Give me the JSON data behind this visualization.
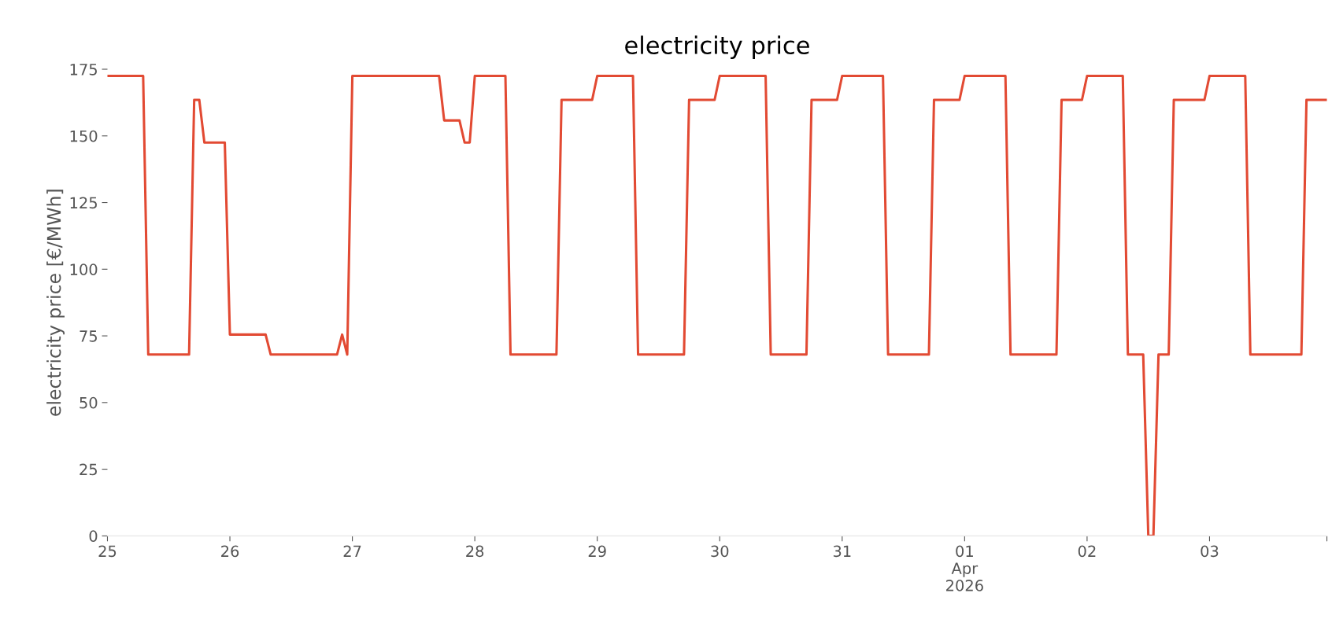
{
  "chart_data": {
    "type": "line",
    "title": "electricity price",
    "ylabel": "electricity price [€/MWh]",
    "x": [
      "2026-03-25T00:00",
      "2026-03-25T07:00",
      "2026-03-25T08:00",
      "2026-03-25T16:00",
      "2026-03-25T17:00",
      "2026-03-25T18:00",
      "2026-03-25T19:00",
      "2026-03-25T23:00",
      "2026-03-26T00:00",
      "2026-03-26T07:00",
      "2026-03-26T08:00",
      "2026-03-26T21:00",
      "2026-03-26T22:00",
      "2026-03-26T23:00",
      "2026-03-27T00:00",
      "2026-03-27T17:00",
      "2026-03-27T18:00",
      "2026-03-27T21:00",
      "2026-03-27T22:00",
      "2026-03-27T23:00",
      "2026-03-28T00:00",
      "2026-03-28T06:00",
      "2026-03-28T07:00",
      "2026-03-28T16:00",
      "2026-03-28T17:00",
      "2026-03-28T23:00",
      "2026-03-29T00:00",
      "2026-03-29T07:00",
      "2026-03-29T08:00",
      "2026-03-29T17:00",
      "2026-03-29T18:00",
      "2026-03-29T23:00",
      "2026-03-30T00:00",
      "2026-03-30T09:00",
      "2026-03-30T10:00",
      "2026-03-30T17:00",
      "2026-03-30T18:00",
      "2026-03-30T23:00",
      "2026-03-31T00:00",
      "2026-03-31T08:00",
      "2026-03-31T09:00",
      "2026-03-31T17:00",
      "2026-03-31T18:00",
      "2026-03-31T23:00",
      "2026-04-01T00:00",
      "2026-04-01T08:00",
      "2026-04-01T09:00",
      "2026-04-01T18:00",
      "2026-04-01T19:00",
      "2026-04-01T23:00",
      "2026-04-02T00:00",
      "2026-04-02T07:00",
      "2026-04-02T08:00",
      "2026-04-02T11:00",
      "2026-04-02T12:00",
      "2026-04-02T13:00",
      "2026-04-02T14:00",
      "2026-04-02T16:00",
      "2026-04-02T17:00",
      "2026-04-02T23:00",
      "2026-04-03T00:00",
      "2026-04-03T07:00",
      "2026-04-03T08:00",
      "2026-04-03T18:00",
      "2026-04-03T19:00",
      "2026-04-03T23:00"
    ],
    "series": [
      {
        "color": "#e24a33",
        "values": [
          172.5,
          172.5,
          68,
          68,
          163.5,
          163.5,
          147.5,
          147.5,
          75.5,
          75.5,
          68,
          68,
          75.5,
          68,
          172.5,
          172.5,
          155.8,
          155.8,
          147.5,
          147.5,
          172.5,
          172.5,
          68,
          68,
          163.5,
          163.5,
          172.5,
          172.5,
          68,
          68,
          163.5,
          163.5,
          172.5,
          172.5,
          68,
          68,
          163.5,
          163.5,
          172.5,
          172.5,
          68,
          68,
          163.5,
          163.5,
          172.5,
          172.5,
          68,
          68,
          163.5,
          163.5,
          172.5,
          172.5,
          68,
          68,
          0,
          0,
          68,
          68,
          163.5,
          163.5,
          172.5,
          172.5,
          68,
          68,
          163.5,
          163.5
        ]
      }
    ],
    "xticks": [
      {
        "value": "2026-03-25",
        "label": "25"
      },
      {
        "value": "2026-03-26",
        "label": "26"
      },
      {
        "value": "2026-03-27",
        "label": "27"
      },
      {
        "value": "2026-03-28",
        "label": "28"
      },
      {
        "value": "2026-03-29",
        "label": "29"
      },
      {
        "value": "2026-03-30",
        "label": "30"
      },
      {
        "value": "2026-03-31",
        "label": "31"
      },
      {
        "value": "2026-04-01",
        "label": "01\nApr\n2026"
      },
      {
        "value": "2026-04-02",
        "label": "02"
      },
      {
        "value": "2026-04-03",
        "label": "03"
      },
      {
        "value": "2026-04-03T23:00",
        "label": null
      }
    ],
    "xlim": [
      "2026-03-25T00:00",
      "2026-04-03T23:00"
    ],
    "ylim": [
      0,
      175
    ],
    "yticks": [
      0,
      25,
      50,
      75,
      100,
      125,
      150,
      175
    ],
    "grid": false,
    "legend": false
  }
}
